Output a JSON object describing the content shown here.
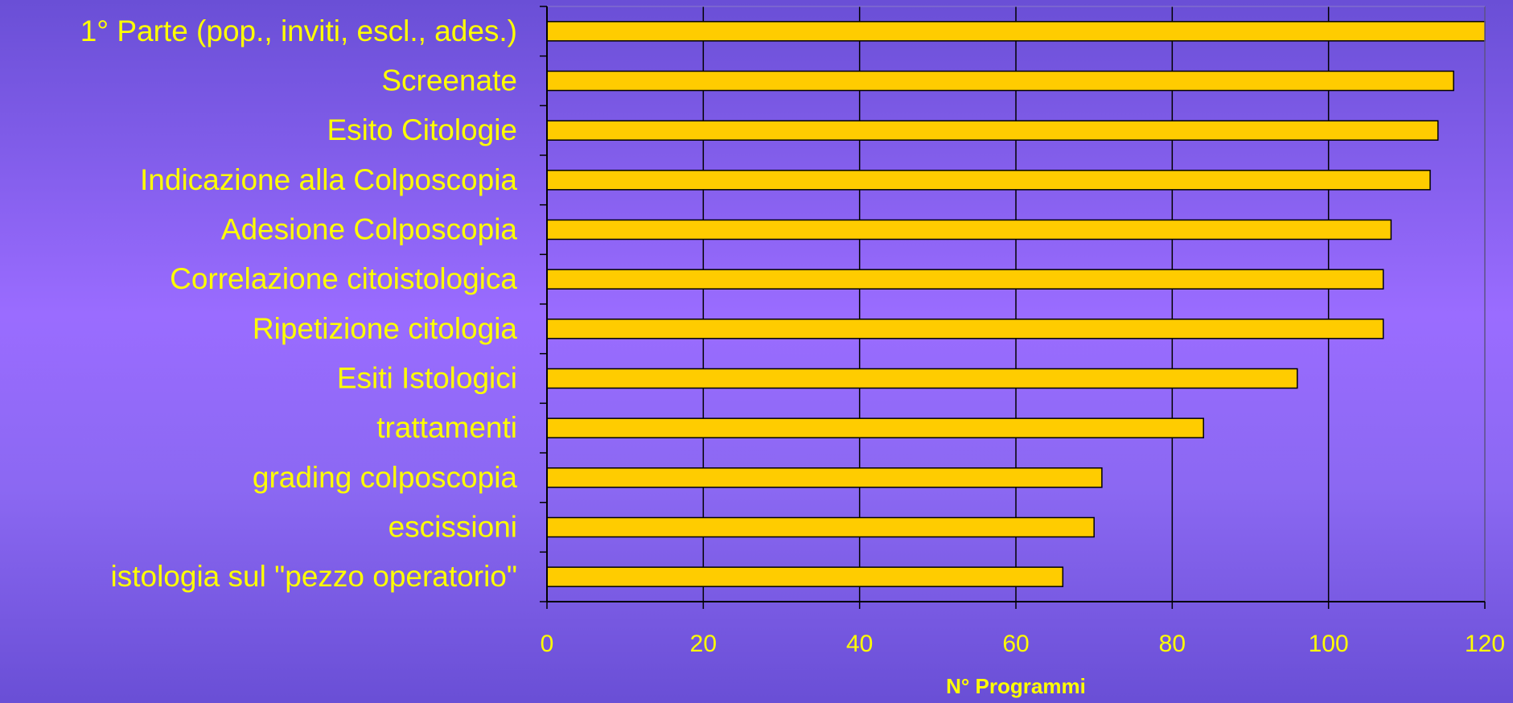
{
  "chart_data": {
    "type": "bar",
    "orientation": "horizontal",
    "title": "",
    "xlabel": "N° Programmi",
    "ylabel": "",
    "categories": [
      "1° Parte (pop., inviti, escl., ades.)",
      "Screenate",
      "Esito Citologie",
      "Indicazione alla Colposcopia",
      "Adesione Colposcopia",
      "Correlazione citoistologica",
      "Ripetizione citologia",
      "Esiti Istologici",
      "trattamenti",
      "grading colposcopia",
      "escissioni",
      "istologia sul \"pezzo operatorio\""
    ],
    "values": [
      120,
      116,
      114,
      113,
      108,
      107,
      107,
      96,
      84,
      71,
      70,
      66
    ],
    "xlim": [
      0,
      120
    ],
    "xticks": [
      "0",
      "20",
      "40",
      "60",
      "80",
      "100",
      "120"
    ],
    "grid": true,
    "legend": "none",
    "colors": {
      "bar": "#ffcc00",
      "text": "#ffff00",
      "axis": "#000000",
      "background": "#9a6cff"
    }
  }
}
